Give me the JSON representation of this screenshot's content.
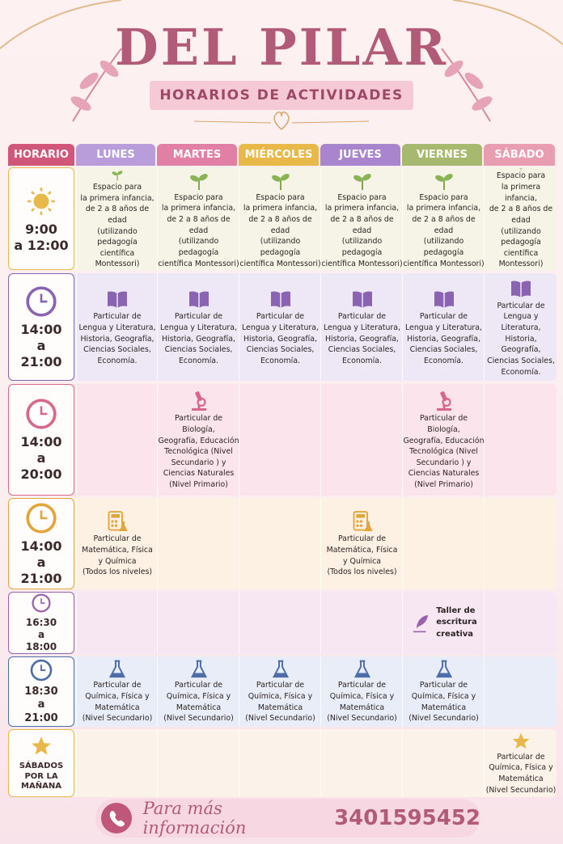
{
  "header": {
    "title": "DEL PILAR",
    "subtitle": "HORARIOS DE ACTIVIDADES"
  },
  "table": {
    "columns": [
      "HORARIO",
      "LUNES",
      "MARTES",
      "MIÉRCOLES",
      "JUEVES",
      "VIERNES",
      "SÁBADO"
    ],
    "rows": [
      {
        "time": "9:00\na 12:00",
        "cells": [
          "Espacio para\nla primera infancia,\nde 2 a 8 años de edad\n(utilizando pedagogía\ncientífica Montessori)",
          "Espacio para\nla primera infancia,\nde 2 a 8 años de edad\n(utilizando pedagogía\ncientífica Montessori)",
          "Espacio para\nla primera infancia,\nde 2 a 8 años de edad\n(utilizando pedagogía\ncientífica Montessori)",
          "Espacio para\nla primera infancia,\nde 2 a 8 años de edad\n(utilizando pedagogía\ncientífica Montessori)",
          "Espacio para\nla primera infancia,\nde 2 a 8 años de edad\n(utilizando pedagogía\ncientífica Montessori)",
          "Espacio para\nla primera infancia,\nde 2 a 8 años de edad\n(utilizando pedagogía\ncientífica Montessori)"
        ]
      },
      {
        "time": "14:00\na\n21:00",
        "cells": [
          "Particular de\nLengua y Literatura,\nHistoria, Geografía,\nCiencias Sociales,\nEconomía.",
          "Particular de\nLengua y Literatura,\nHistoria, Geografía,\nCiencias Sociales,\nEconomía.",
          "Particular de\nLengua y Literatura,\nHistoria, Geografía,\nCiencias Sociales,\nEconomía.",
          "Particular de\nLengua y Literatura,\nHistoria, Geografía,\nCiencias Sociales,\nEconomía.",
          "Particular de\nLengua y Literatura,\nHistoria, Geografía,\nCiencias Sociales,\nEconomía.",
          "Particular de\nLengua y Literatura,\nHistoria, Geografía,\nCiencias Sociales,\nEconomía."
        ]
      },
      {
        "time": "14:00\na\n20:00",
        "cells": [
          null,
          "Particular de Biología,\nGeografía, Educación\nTecnológica (Nivel\nSecundario ) y\nCiencias Naturales\n(Nivel Primario)",
          null,
          null,
          "Particular de Biología,\nGeografía, Educación\nTecnológica (Nivel\nSecundario ) y\nCiencias Naturales\n(Nivel Primario)",
          null
        ]
      },
      {
        "time": "14:00\na\n21:00",
        "cells": [
          "Particular de\nMatemática, Física\ny Química\n(Todos los niveles)",
          null,
          null,
          "Particular de\nMatemática, Física\ny Química\n(Todos los niveles)",
          null,
          null
        ]
      },
      {
        "time": "16:30\na\n18:00",
        "cells": [
          null,
          null,
          null,
          null,
          "Taller de\nescritura\ncreativa",
          null
        ]
      },
      {
        "time": "18:30\na\n21:00",
        "cells": [
          "Particular de\nQuímica, Física y\nMatemática\n(Nivel Secundario)",
          "Particular de\nQuímica, Física y\nMatemática\n(Nivel Secundario)",
          "Particular de\nQuímica, Física y\nMatemática\n(Nivel Secundario)",
          "Particular de\nQuímica, Física y\nMatemática\n(Nivel Secundario)",
          "Particular de\nQuímica, Física y\nMatemática\n(Nivel Secundario)",
          null
        ]
      },
      {
        "time": "SÁBADOS\nPOR LA\nMAÑANA",
        "cells": [
          null,
          null,
          null,
          null,
          null,
          "Particular de\nQuímica, Física y\nMatemática\n(Nivel Secundario)"
        ]
      }
    ]
  },
  "footer": {
    "text": "Para más información",
    "phone": "3401595452"
  }
}
